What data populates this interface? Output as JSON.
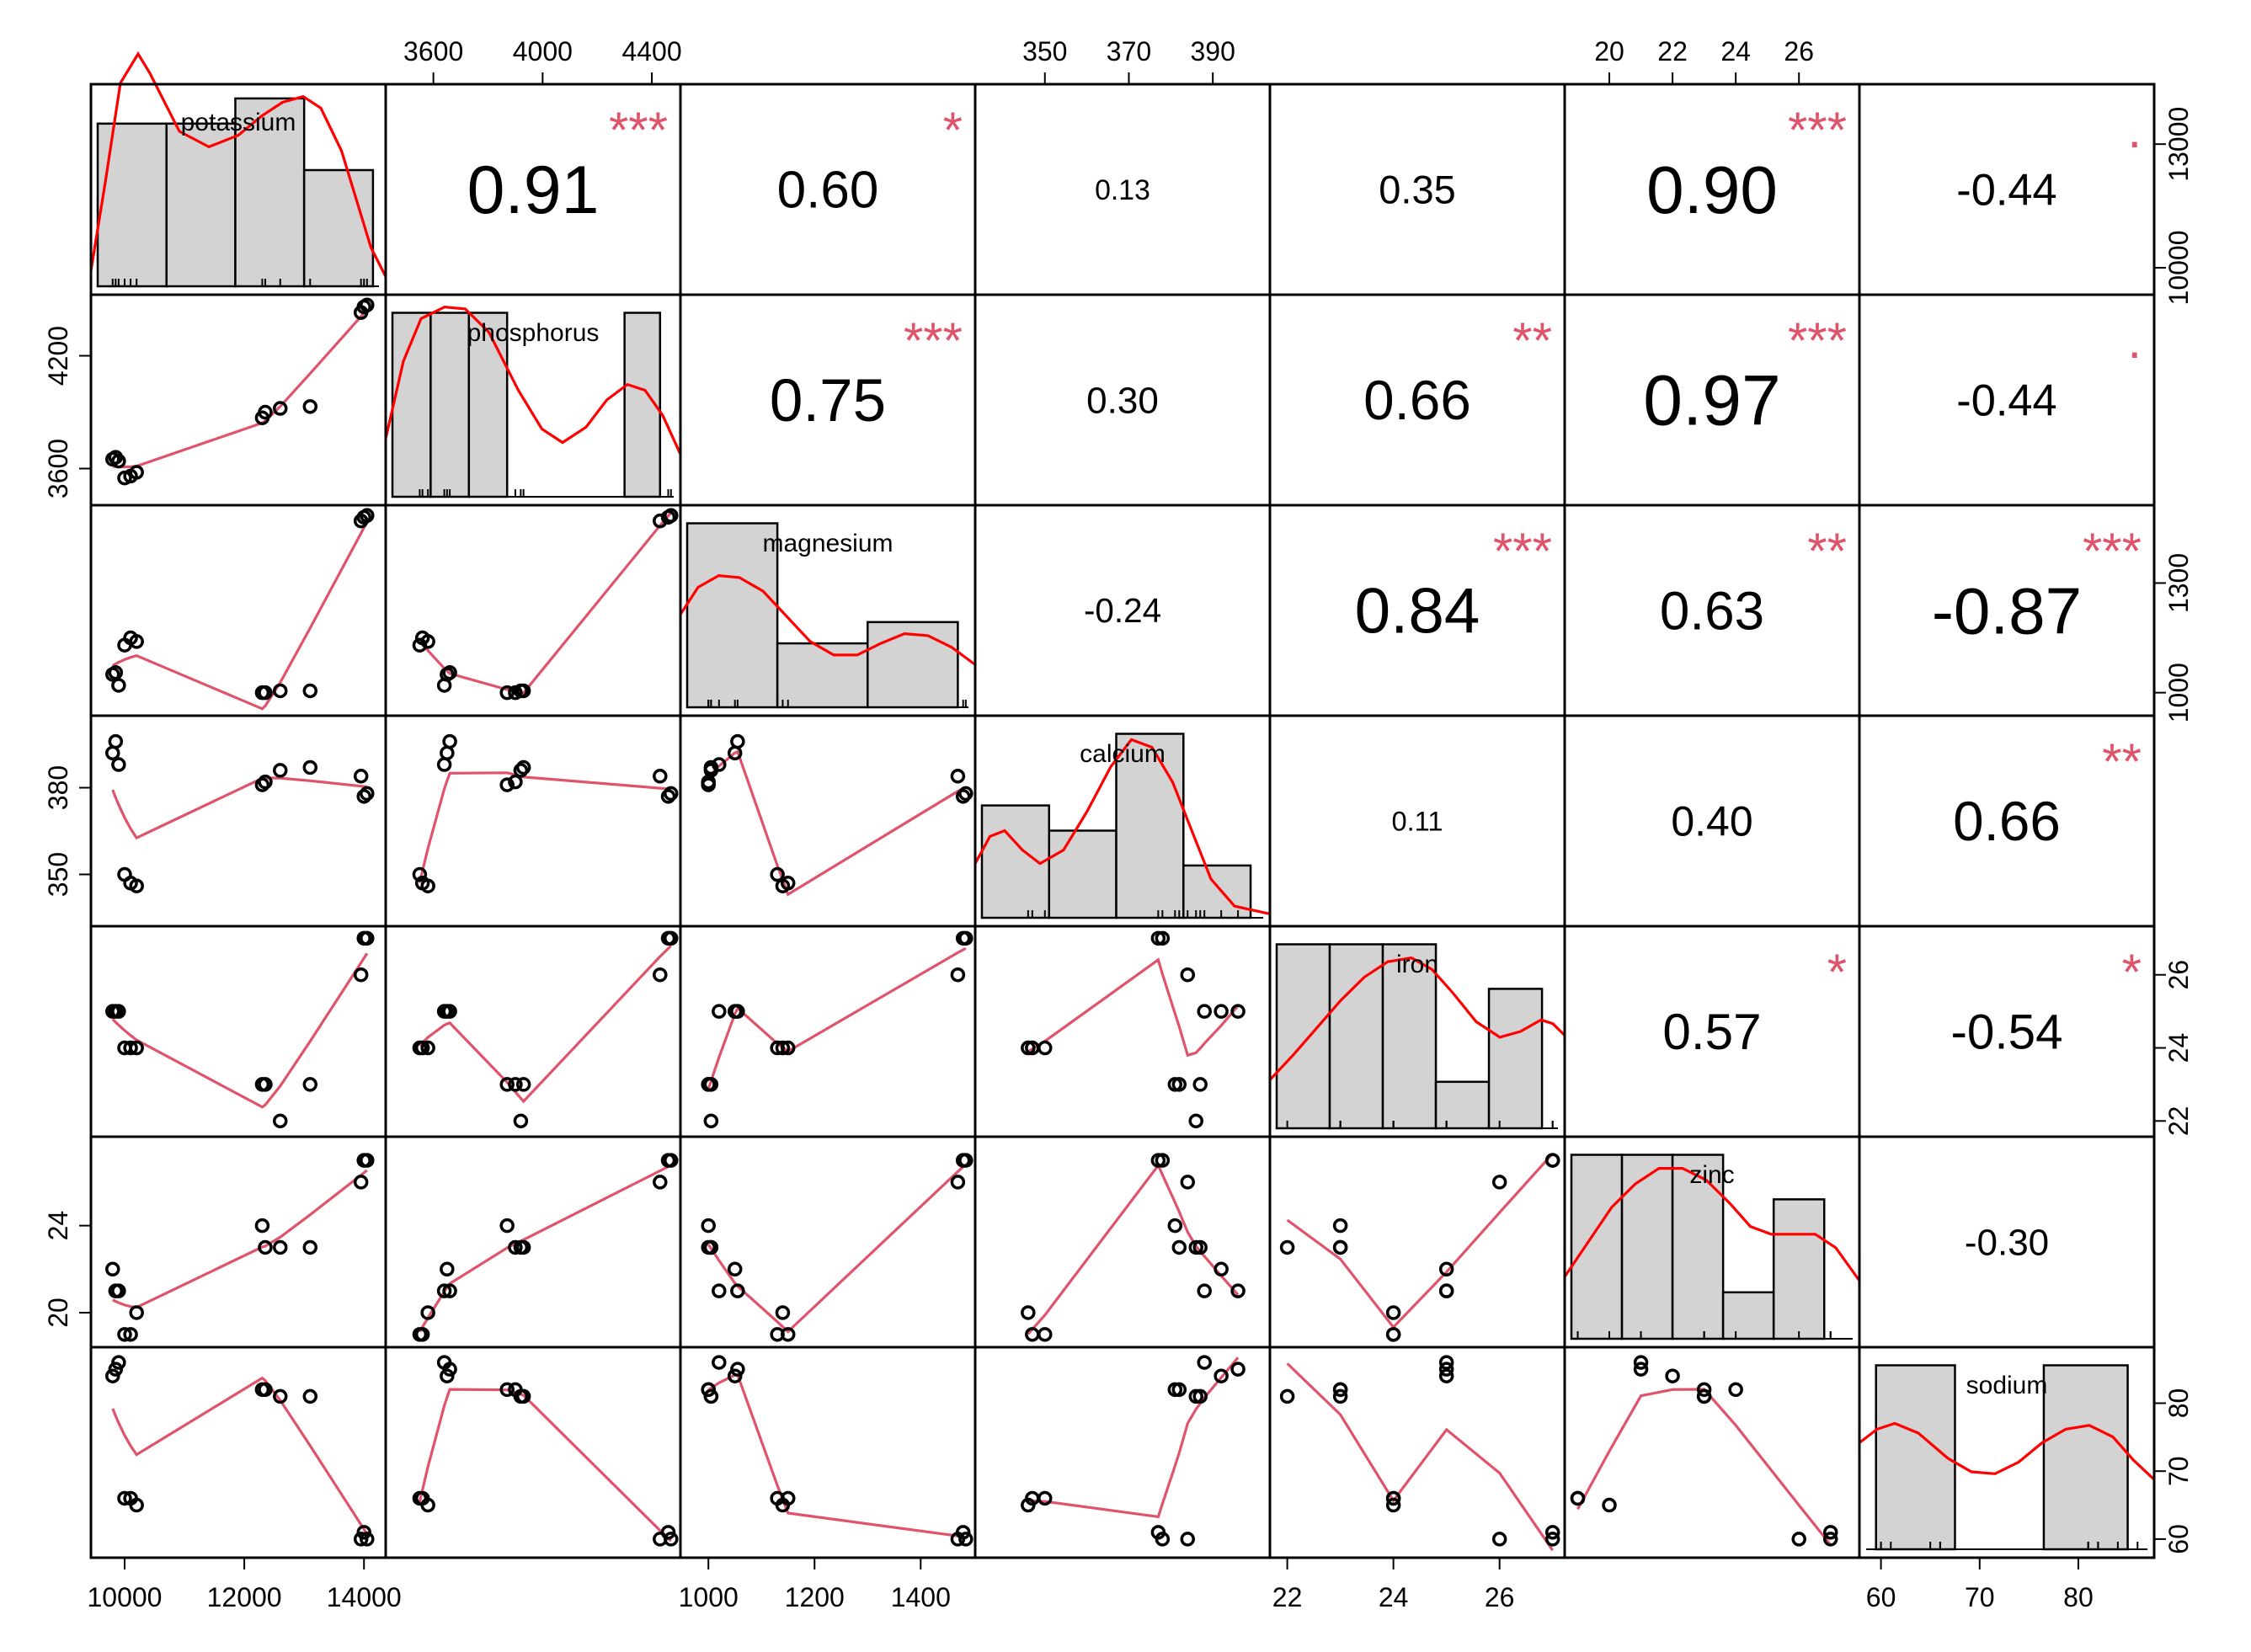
{
  "chart_data": {
    "type": "scatter",
    "variables": [
      "potassium",
      "phosphorus",
      "magnesium",
      "calcium",
      "iron",
      "zinc",
      "sodium"
    ],
    "ranges": {
      "potassium": [
        9550,
        14250
      ],
      "phosphorus": [
        3450,
        4480
      ],
      "magnesium": [
        960,
        1490
      ],
      "calcium": [
        335,
        402
      ],
      "iron": [
        21.8,
        27.1
      ],
      "zinc": [
        18.8,
        27.7
      ],
      "sodium": [
        58.5,
        87
      ]
    },
    "ticks": {
      "potassium": [
        10000,
        12000,
        14000
      ],
      "phosphorus": [
        3600,
        4000,
        4400
      ],
      "magnesium": [
        1000,
        1200,
        1400
      ],
      "calcium": [
        350,
        370,
        390
      ],
      "calcium_left": [
        350,
        380
      ],
      "iron": [
        22,
        24,
        26
      ],
      "zinc": [
        20,
        22,
        24,
        26
      ],
      "zinc_left": [
        20,
        24
      ],
      "sodium": [
        60,
        70,
        80
      ],
      "potassium_right": [
        10000,
        13000
      ],
      "phosphorus_left": [
        3600,
        4200
      ],
      "magnesium_right": [
        1000,
        1300
      ]
    },
    "observations": [
      {
        "potassium": 9800,
        "phosphorus": 3650,
        "magnesium": 1050,
        "calcium": 392,
        "iron": 25,
        "zinc": 22,
        "sodium": 84
      },
      {
        "potassium": 9850,
        "phosphorus": 3660,
        "magnesium": 1055,
        "calcium": 396,
        "iron": 25,
        "zinc": 21,
        "sodium": 85
      },
      {
        "potassium": 9900,
        "phosphorus": 3640,
        "magnesium": 1020,
        "calcium": 388,
        "iron": 25,
        "zinc": 21,
        "sodium": 86
      },
      {
        "potassium": 10000,
        "phosphorus": 3550,
        "magnesium": 1130,
        "calcium": 350,
        "iron": 24,
        "zinc": 19,
        "sodium": 66
      },
      {
        "potassium": 10100,
        "phosphorus": 3560,
        "magnesium": 1150,
        "calcium": 347,
        "iron": 24,
        "zinc": 19,
        "sodium": 66
      },
      {
        "potassium": 10200,
        "phosphorus": 3580,
        "magnesium": 1140,
        "calcium": 346,
        "iron": 24,
        "zinc": 20,
        "sodium": 65
      },
      {
        "potassium": 12300,
        "phosphorus": 3870,
        "magnesium": 1000,
        "calcium": 381,
        "iron": 23,
        "zinc": 24,
        "sodium": 82
      },
      {
        "potassium": 12350,
        "phosphorus": 3900,
        "magnesium": 1000,
        "calcium": 382,
        "iron": 23,
        "zinc": 23,
        "sodium": 82
      },
      {
        "potassium": 12600,
        "phosphorus": 3920,
        "magnesium": 1005,
        "calcium": 386,
        "iron": 22,
        "zinc": 23,
        "sodium": 81
      },
      {
        "potassium": 13100,
        "phosphorus": 3930,
        "magnesium": 1005,
        "calcium": 387,
        "iron": 23,
        "zinc": 23,
        "sodium": 81
      },
      {
        "potassium": 13950,
        "phosphorus": 4430,
        "magnesium": 1470,
        "calcium": 384,
        "iron": 26,
        "zinc": 26,
        "sodium": 60
      },
      {
        "potassium": 14000,
        "phosphorus": 4460,
        "magnesium": 1480,
        "calcium": 377,
        "iron": 27,
        "zinc": 27,
        "sodium": 61
      },
      {
        "potassium": 14050,
        "phosphorus": 4470,
        "magnesium": 1485,
        "calcium": 378,
        "iron": 27,
        "zinc": 27,
        "sodium": 60
      }
    ],
    "histograms": {
      "potassium": {
        "edges": [
          9550,
          10700,
          11850,
          13000,
          14150
        ],
        "heights": [
          0.84,
          0.84,
          0.97,
          0.6
        ],
        "density": [
          [
            0.0,
            0.08
          ],
          [
            0.05,
            0.55
          ],
          [
            0.1,
            1.05
          ],
          [
            0.16,
            1.2
          ],
          [
            0.2,
            1.1
          ],
          [
            0.3,
            0.8
          ],
          [
            0.4,
            0.72
          ],
          [
            0.5,
            0.78
          ],
          [
            0.58,
            0.88
          ],
          [
            0.65,
            0.95
          ],
          [
            0.72,
            0.98
          ],
          [
            0.78,
            0.92
          ],
          [
            0.85,
            0.7
          ],
          [
            0.9,
            0.45
          ],
          [
            0.95,
            0.2
          ],
          [
            1.0,
            0.05
          ]
        ]
      },
      "phosphorus": {
        "edges": [
          3450,
          3590,
          3730,
          3870,
          4300,
          4430
        ],
        "heights": [
          0.95,
          0.95,
          0.95,
          0.0,
          0.95
        ],
        "density": [
          [
            0.0,
            0.3
          ],
          [
            0.06,
            0.7
          ],
          [
            0.12,
            0.92
          ],
          [
            0.2,
            0.98
          ],
          [
            0.27,
            0.97
          ],
          [
            0.35,
            0.85
          ],
          [
            0.45,
            0.55
          ],
          [
            0.53,
            0.35
          ],
          [
            0.6,
            0.28
          ],
          [
            0.68,
            0.36
          ],
          [
            0.75,
            0.5
          ],
          [
            0.82,
            0.58
          ],
          [
            0.88,
            0.55
          ],
          [
            0.94,
            0.42
          ],
          [
            1.0,
            0.22
          ]
        ]
      },
      "magnesium": {
        "edges": [
          960,
          1130,
          1300,
          1470
        ],
        "heights": [
          0.95,
          0.33,
          0.44
        ],
        "density": [
          [
            0.0,
            0.48
          ],
          [
            0.06,
            0.62
          ],
          [
            0.13,
            0.68
          ],
          [
            0.2,
            0.67
          ],
          [
            0.28,
            0.6
          ],
          [
            0.36,
            0.47
          ],
          [
            0.44,
            0.34
          ],
          [
            0.52,
            0.27
          ],
          [
            0.6,
            0.27
          ],
          [
            0.68,
            0.33
          ],
          [
            0.76,
            0.38
          ],
          [
            0.84,
            0.37
          ],
          [
            0.92,
            0.31
          ],
          [
            1.0,
            0.22
          ]
        ]
      },
      "calcium": {
        "edges": [
          335,
          351,
          367,
          383,
          399
        ],
        "heights": [
          0.58,
          0.45,
          0.95,
          0.27
        ],
        "density": [
          [
            0.0,
            0.28
          ],
          [
            0.05,
            0.42
          ],
          [
            0.1,
            0.45
          ],
          [
            0.16,
            0.35
          ],
          [
            0.22,
            0.28
          ],
          [
            0.3,
            0.35
          ],
          [
            0.38,
            0.55
          ],
          [
            0.46,
            0.78
          ],
          [
            0.53,
            0.92
          ],
          [
            0.6,
            0.88
          ],
          [
            0.67,
            0.7
          ],
          [
            0.74,
            0.43
          ],
          [
            0.8,
            0.2
          ],
          [
            0.88,
            0.06
          ],
          [
            1.0,
            0.02
          ]
        ]
      },
      "iron": {
        "edges": [
          21.8,
          22.8,
          23.8,
          24.8,
          25.8,
          26.8
        ],
        "heights": [
          0.95,
          0.95,
          0.95,
          0.24,
          0.72
        ],
        "density": [
          [
            0.0,
            0.25
          ],
          [
            0.08,
            0.38
          ],
          [
            0.16,
            0.52
          ],
          [
            0.24,
            0.66
          ],
          [
            0.32,
            0.78
          ],
          [
            0.4,
            0.86
          ],
          [
            0.48,
            0.88
          ],
          [
            0.55,
            0.82
          ],
          [
            0.62,
            0.7
          ],
          [
            0.7,
            0.55
          ],
          [
            0.78,
            0.47
          ],
          [
            0.85,
            0.5
          ],
          [
            0.92,
            0.56
          ],
          [
            0.96,
            0.54
          ],
          [
            1.0,
            0.48
          ]
        ]
      },
      "zinc": {
        "edges": [
          18.8,
          20.4,
          22.0,
          23.6,
          25.2,
          26.8
        ],
        "heights": [
          0.95,
          0.95,
          0.95,
          0.24,
          0.72
        ],
        "density": [
          [
            0.0,
            0.32
          ],
          [
            0.08,
            0.5
          ],
          [
            0.16,
            0.68
          ],
          [
            0.24,
            0.8
          ],
          [
            0.32,
            0.88
          ],
          [
            0.4,
            0.88
          ],
          [
            0.48,
            0.82
          ],
          [
            0.56,
            0.7
          ],
          [
            0.63,
            0.58
          ],
          [
            0.7,
            0.54
          ],
          [
            0.78,
            0.54
          ],
          [
            0.85,
            0.54
          ],
          [
            0.92,
            0.47
          ],
          [
            1.0,
            0.3
          ]
        ]
      },
      "sodium": {
        "edges": [
          59.5,
          67.5,
          76.5,
          85.0
        ],
        "heights": [
          0.95,
          0.0,
          0.95
        ],
        "density": [
          [
            0.0,
            0.55
          ],
          [
            0.06,
            0.62
          ],
          [
            0.12,
            0.65
          ],
          [
            0.2,
            0.6
          ],
          [
            0.3,
            0.47
          ],
          [
            0.38,
            0.4
          ],
          [
            0.46,
            0.39
          ],
          [
            0.54,
            0.45
          ],
          [
            0.62,
            0.55
          ],
          [
            0.7,
            0.62
          ],
          [
            0.78,
            0.64
          ],
          [
            0.86,
            0.58
          ],
          [
            0.93,
            0.46
          ],
          [
            1.0,
            0.36
          ]
        ]
      }
    },
    "correlations": [
      {
        "row": 0,
        "col": 1,
        "r": "0.91",
        "stars": "***"
      },
      {
        "row": 0,
        "col": 2,
        "r": "0.60",
        "stars": "*"
      },
      {
        "row": 0,
        "col": 3,
        "r": "0.13",
        "stars": ""
      },
      {
        "row": 0,
        "col": 4,
        "r": "0.35",
        "stars": ""
      },
      {
        "row": 0,
        "col": 5,
        "r": "0.90",
        "stars": "***"
      },
      {
        "row": 0,
        "col": 6,
        "r": "-0.44",
        "stars": "."
      },
      {
        "row": 1,
        "col": 2,
        "r": "0.75",
        "stars": "***"
      },
      {
        "row": 1,
        "col": 3,
        "r": "0.30",
        "stars": ""
      },
      {
        "row": 1,
        "col": 4,
        "r": "0.66",
        "stars": "**"
      },
      {
        "row": 1,
        "col": 5,
        "r": "0.97",
        "stars": "***"
      },
      {
        "row": 1,
        "col": 6,
        "r": "-0.44",
        "stars": "."
      },
      {
        "row": 2,
        "col": 3,
        "r": "-0.24",
        "stars": ""
      },
      {
        "row": 2,
        "col": 4,
        "r": "0.84",
        "stars": "***"
      },
      {
        "row": 2,
        "col": 5,
        "r": "0.63",
        "stars": "**"
      },
      {
        "row": 2,
        "col": 6,
        "r": "-0.87",
        "stars": "***"
      },
      {
        "row": 3,
        "col": 4,
        "r": "0.11",
        "stars": ""
      },
      {
        "row": 3,
        "col": 5,
        "r": "0.40",
        "stars": ""
      },
      {
        "row": 3,
        "col": 6,
        "r": "0.66",
        "stars": "**"
      },
      {
        "row": 4,
        "col": 5,
        "r": "0.57",
        "stars": "*"
      },
      {
        "row": 4,
        "col": 6,
        "r": "-0.54",
        "stars": "*"
      },
      {
        "row": 5,
        "col": 6,
        "r": "-0.30",
        "stars": ""
      }
    ],
    "title": "",
    "grid": false,
    "legend": "none"
  },
  "colors": {
    "points": "#000000",
    "smooth": "#DF536B",
    "density": "#FF0000",
    "hist_fill": "#D3D3D3",
    "stars": "#DF536B",
    "text": "#000000"
  }
}
